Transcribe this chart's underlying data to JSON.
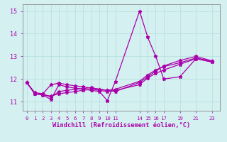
{
  "xlabel": "Windchill (Refroidissement éolien,°C)",
  "bg_color": "#d4f0f0",
  "grid_color": "#b8e0e0",
  "line_color": "#aa00aa",
  "xlim": [
    -0.5,
    24
  ],
  "ylim": [
    10.6,
    15.3
  ],
  "xticks": [
    0,
    1,
    2,
    3,
    4,
    5,
    6,
    7,
    8,
    9,
    10,
    11,
    14,
    15,
    16,
    17,
    19,
    21,
    23
  ],
  "yticks": [
    11,
    12,
    13,
    14,
    15
  ],
  "x_line1": [
    0,
    1,
    2,
    3,
    4,
    5,
    6,
    7,
    8,
    9,
    10,
    11,
    14,
    15,
    16,
    17,
    19,
    21,
    23
  ],
  "y_line1": [
    11.85,
    11.35,
    11.3,
    11.1,
    11.75,
    11.65,
    11.6,
    11.55,
    11.5,
    11.45,
    11.05,
    11.9,
    15.0,
    13.85,
    13.0,
    12.0,
    12.1,
    12.9,
    12.75
  ],
  "x_line2": [
    0,
    1,
    2,
    3,
    4,
    5,
    6,
    7,
    8,
    9,
    10,
    11,
    14,
    15,
    16,
    17,
    19,
    21,
    23
  ],
  "y_line2": [
    11.85,
    11.35,
    11.3,
    11.25,
    11.35,
    11.4,
    11.45,
    11.5,
    11.55,
    11.5,
    11.45,
    11.5,
    11.75,
    12.05,
    12.25,
    12.4,
    12.65,
    12.9,
    12.75
  ],
  "x_line3": [
    0,
    1,
    2,
    3,
    4,
    5,
    6,
    7,
    8,
    9,
    10,
    11,
    14,
    15,
    16,
    17,
    19,
    21,
    23
  ],
  "y_line3": [
    11.85,
    11.35,
    11.35,
    11.75,
    11.82,
    11.75,
    11.7,
    11.65,
    11.6,
    11.55,
    11.5,
    11.45,
    11.85,
    12.1,
    12.35,
    12.58,
    12.82,
    13.0,
    12.8
  ],
  "x_line4": [
    0,
    1,
    2,
    3,
    4,
    5,
    6,
    7,
    8,
    9,
    10,
    11,
    14,
    15,
    16,
    17,
    19,
    21,
    23
  ],
  "y_line4": [
    11.85,
    11.4,
    11.35,
    11.2,
    11.45,
    11.5,
    11.55,
    11.58,
    11.62,
    11.55,
    11.5,
    11.55,
    11.9,
    12.18,
    12.4,
    12.55,
    12.72,
    12.93,
    12.78
  ]
}
